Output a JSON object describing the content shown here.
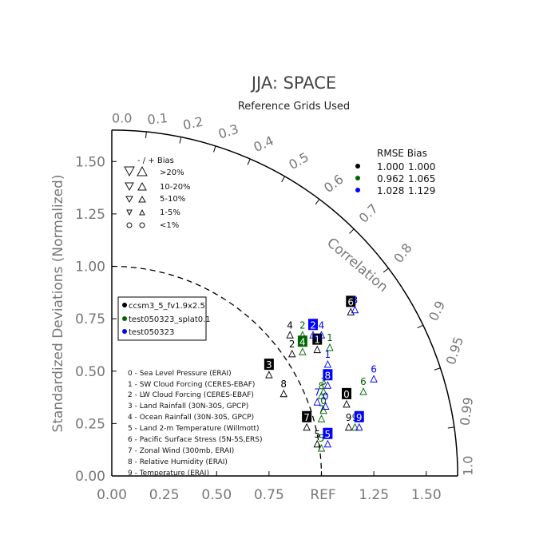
{
  "chart_data": {
    "type": "scatter",
    "title": "JJA: SPACE",
    "subtitle": "Reference Grids Used",
    "ylabel": "Standardized Deviations (Normalized)",
    "arc_label": "Correlation",
    "ref_label": "REF",
    "max_std": 1.65,
    "x_ticks": [
      "0.00",
      "0.25",
      "0.50",
      "0.75",
      "1.25",
      "1.50"
    ],
    "x_tick_values": [
      0,
      0.25,
      0.5,
      0.75,
      1.25,
      1.5
    ],
    "y_ticks": [
      "0.00",
      "0.25",
      "0.50",
      "0.75",
      "1.00",
      "1.25",
      "1.50"
    ],
    "y_tick_values": [
      0,
      0.25,
      0.5,
      0.75,
      1.0,
      1.25,
      1.5
    ],
    "corr_ticks": [
      "0.0",
      "0.1",
      "0.2",
      "0.3",
      "0.4",
      "0.5",
      "0.6",
      "0.7",
      "0.8",
      "0.9",
      "0.95",
      "0.99",
      "1.0"
    ],
    "corr_values": [
      0.0,
      0.1,
      0.2,
      0.3,
      0.4,
      0.5,
      0.6,
      0.7,
      0.8,
      0.9,
      0.95,
      0.99,
      1.0
    ],
    "bias_legend": {
      "header": "- / +   Bias",
      "rows": [
        ">20%",
        "10-20%",
        "5-10%",
        "1-5%",
        "<1%"
      ]
    },
    "rmse_table": {
      "header": "RMSE  Bias",
      "rows": [
        {
          "color": "#000000",
          "rmse": "1.000",
          "bias": "1.000"
        },
        {
          "color": "#006400",
          "rmse": "0.962",
          "bias": "1.065"
        },
        {
          "color": "#0000ff",
          "rmse": "1.028",
          "bias": "1.129"
        }
      ]
    },
    "series": [
      {
        "name": "ccsm3_5_fv1.9x2.5",
        "color": "#000000"
      },
      {
        "name": "test050323_splat0.1",
        "color": "#006400"
      },
      {
        "name": "test050323",
        "color": "#0000ff"
      }
    ],
    "variables": [
      "0 - Sea Level Pressure (ERAI)",
      "1 - SW Cloud Forcing (CERES-EBAF)",
      "2 - LW Cloud Forcing (CERES-EBAF)",
      "3 - Land Rainfall (30N-30S, GPCP)",
      "4 - Ocean Rainfall (30N-30S, GPCP)",
      "5 - Land 2-m Temperature (Willmott)",
      "6 - Pacific Surface Stress (5N-5S,ERS)",
      "7 - Zonal Wind (300mb, ERAI)",
      "8 - Relative Humidity (ERAI)",
      "9 - Temperature (ERAI)"
    ],
    "points": [
      {
        "series": 0,
        "label": "0",
        "x": 1.12,
        "y": 0.37,
        "boxed": true
      },
      {
        "series": 0,
        "label": "1",
        "x": 0.98,
        "y": 0.63,
        "boxed": true
      },
      {
        "series": 0,
        "label": "2",
        "x": 0.86,
        "y": 0.61,
        "boxed": false
      },
      {
        "series": 0,
        "label": "3",
        "x": 0.75,
        "y": 0.51,
        "boxed": true
      },
      {
        "series": 0,
        "label": "4",
        "x": 0.85,
        "y": 0.7,
        "boxed": false
      },
      {
        "series": 0,
        "label": "5",
        "x": 0.98,
        "y": 0.18,
        "boxed": false
      },
      {
        "series": 0,
        "label": "6",
        "x": 1.14,
        "y": 0.81,
        "boxed": true
      },
      {
        "series": 0,
        "label": "7",
        "x": 0.93,
        "y": 0.26,
        "boxed": true
      },
      {
        "series": 0,
        "label": "8",
        "x": 0.82,
        "y": 0.42,
        "boxed": false
      },
      {
        "series": 0,
        "label": "9",
        "x": 1.13,
        "y": 0.26,
        "boxed": false
      },
      {
        "series": 1,
        "label": "0",
        "x": 1.01,
        "y": 0.34,
        "boxed": false
      },
      {
        "series": 1,
        "label": "1",
        "x": 1.04,
        "y": 0.64,
        "boxed": false
      },
      {
        "series": 1,
        "label": "2",
        "x": 0.91,
        "y": 0.7,
        "boxed": false
      },
      {
        "series": 1,
        "label": "3",
        "x": 1.01,
        "y": 0.43,
        "boxed": false
      },
      {
        "series": 1,
        "label": "4",
        "x": 0.91,
        "y": 0.62,
        "boxed": true
      },
      {
        "series": 1,
        "label": "5",
        "x": 1.0,
        "y": 0.16,
        "boxed": false
      },
      {
        "series": 1,
        "label": "6",
        "x": 1.2,
        "y": 0.43,
        "boxed": false
      },
      {
        "series": 1,
        "label": "7",
        "x": 1.0,
        "y": 0.3,
        "boxed": false
      },
      {
        "series": 1,
        "label": "8",
        "x": 1.0,
        "y": 0.41,
        "boxed": false
      },
      {
        "series": 1,
        "label": "9",
        "x": 1.16,
        "y": 0.26,
        "boxed": false
      },
      {
        "series": 2,
        "label": "0",
        "x": 1.02,
        "y": 0.36,
        "boxed": false
      },
      {
        "series": 2,
        "label": "1",
        "x": 1.03,
        "y": 0.56,
        "boxed": false
      },
      {
        "series": 2,
        "label": "2",
        "x": 0.96,
        "y": 0.7,
        "boxed": true
      },
      {
        "series": 2,
        "label": "3",
        "x": 1.16,
        "y": 0.82,
        "boxed": false
      },
      {
        "series": 2,
        "label": "4",
        "x": 1.0,
        "y": 0.7,
        "boxed": false
      },
      {
        "series": 2,
        "label": "5",
        "x": 1.03,
        "y": 0.18,
        "boxed": true
      },
      {
        "series": 2,
        "label": "6",
        "x": 1.25,
        "y": 0.49,
        "boxed": false
      },
      {
        "series": 2,
        "label": "7",
        "x": 0.98,
        "y": 0.38,
        "boxed": false
      },
      {
        "series": 2,
        "label": "8",
        "x": 1.03,
        "y": 0.46,
        "boxed": true
      },
      {
        "series": 2,
        "label": "9",
        "x": 1.18,
        "y": 0.26,
        "boxed": true
      }
    ]
  }
}
